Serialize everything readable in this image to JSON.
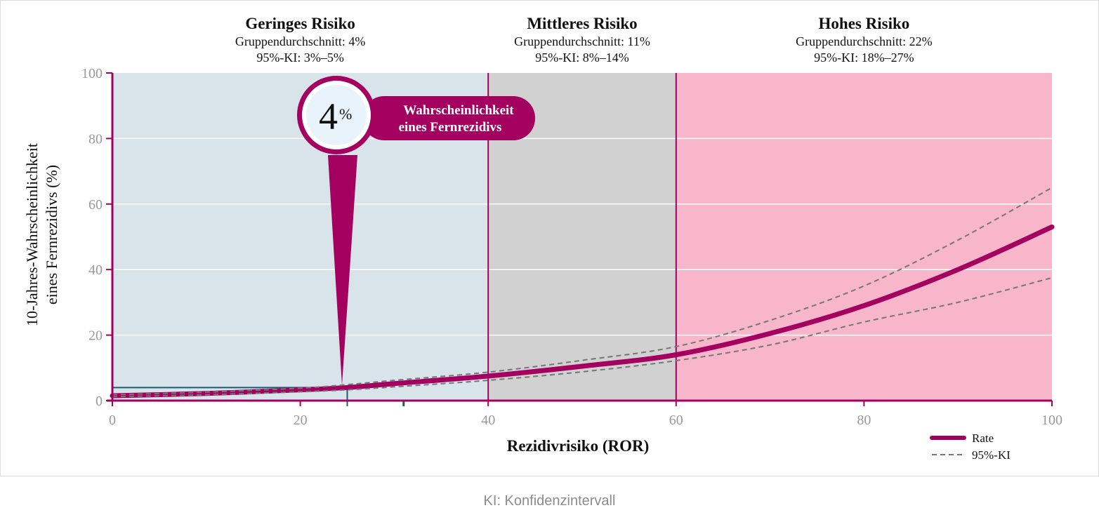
{
  "chart_data": {
    "type": "line",
    "xlabel": "Rezidivrisiko (ROR)",
    "ylabel_line1": "10-Jahres-Wahrscheinlichkeit",
    "ylabel_line2": "eines Fernrezidivs (%)",
    "xlim": [
      0,
      100
    ],
    "ylim": [
      0,
      100
    ],
    "x_ticks": [
      "0",
      "20",
      "40",
      "60",
      "80",
      "100"
    ],
    "y_ticks": [
      "0",
      "20",
      "40",
      "60",
      "80",
      "100"
    ],
    "grid": true,
    "legend_position": "bottom-right",
    "legend": {
      "rate": "Rate",
      "ci": "95%-KI"
    },
    "zones": [
      {
        "title": "Geringes Risiko",
        "avg": "Gruppendurchschnitt: 4%",
        "ci": "95%-KI: 3%–5%",
        "x_start": 0,
        "x_end": 40,
        "color": "#d8e4ea"
      },
      {
        "title": "Mittleres Risiko",
        "avg": "Gruppendurchschnitt: 11%",
        "ci": "95%-KI: 8%–14%",
        "x_start": 40,
        "x_end": 60,
        "color": "#d1d1d1"
      },
      {
        "title": "Hohes Risiko",
        "avg": "Gruppendurchschnitt: 22%",
        "ci": "95%-KI: 18%–27%",
        "x_start": 60,
        "x_end": 100,
        "color": "#f8b6ca"
      }
    ],
    "series": [
      {
        "name": "Rate",
        "x": [
          0,
          10,
          20,
          25,
          30,
          40,
          50,
          60,
          70,
          80,
          90,
          100
        ],
        "y": [
          1.5,
          2.2,
          3.3,
          4,
          5.2,
          7.5,
          10.5,
          14,
          20.5,
          29,
          40,
          53
        ]
      },
      {
        "name": "95%-KI",
        "bound": "upper",
        "x": [
          0,
          10,
          20,
          25,
          30,
          40,
          50,
          60,
          70,
          80,
          90,
          100
        ],
        "y": [
          1.8,
          2.6,
          3.8,
          4.9,
          6.2,
          8.7,
          12.3,
          16.5,
          24.5,
          35,
          49,
          65
        ]
      },
      {
        "name": "95%-KI",
        "bound": "lower",
        "x": [
          0,
          10,
          20,
          25,
          30,
          40,
          50,
          60,
          70,
          80,
          90,
          100
        ],
        "y": [
          1.2,
          1.8,
          2.7,
          3.3,
          4.2,
          6.2,
          8.8,
          12.2,
          17,
          24,
          30,
          37.5
        ]
      }
    ],
    "marker": {
      "x": 25,
      "y": 4,
      "value": "4",
      "unit": "%",
      "label_line1": "Wahrscheinlichkeit",
      "label_line2": "eines Fernrezidivs"
    },
    "band_marker_x": 31,
    "colors": {
      "accent": "#a3005f",
      "ci": "#767676",
      "teal": "#1c5c74",
      "tick": "#9a9a9a",
      "text": "#111111",
      "grid": "#ffffff"
    }
  },
  "footnote": "KI: Konfidenzintervall"
}
